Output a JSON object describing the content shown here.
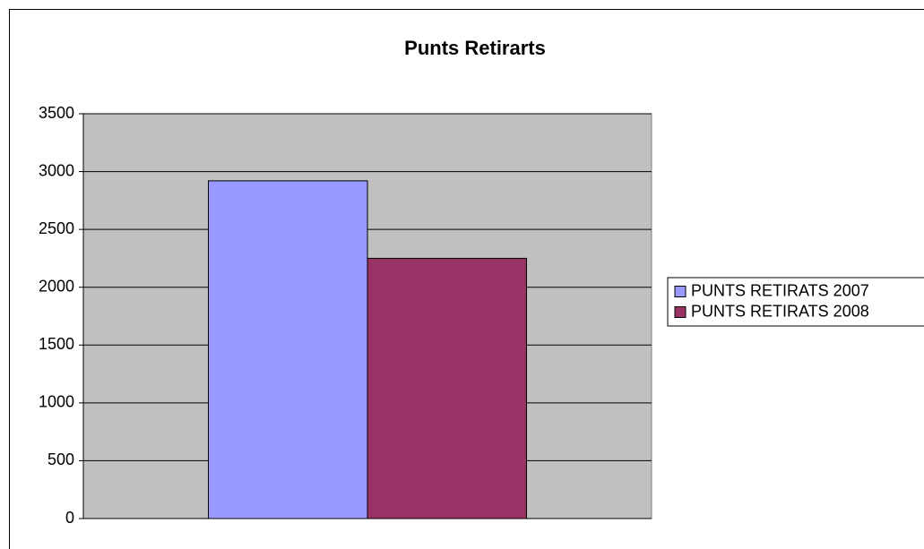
{
  "chart_data": {
    "type": "bar",
    "title": "Punts Retirarts",
    "categories": [
      null
    ],
    "series": [
      {
        "name": "PUNTS RETIRATS 2007",
        "color": "#9999ff",
        "values": [
          2920
        ]
      },
      {
        "name": "PUNTS RETIRATS 2008",
        "color": "#993366",
        "values": [
          2250
        ]
      }
    ],
    "ylim": [
      0,
      3500
    ],
    "yticks": [
      0,
      500,
      1000,
      1500,
      2000,
      2500,
      3000,
      3500
    ],
    "grid": true,
    "legend": "right"
  }
}
